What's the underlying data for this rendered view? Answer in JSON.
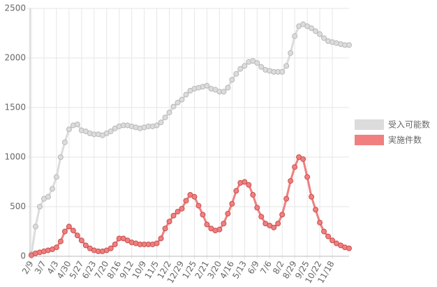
{
  "chart_data": {
    "type": "line",
    "categories": [
      "2/9",
      null,
      null,
      "3/7",
      null,
      null,
      "4/3",
      null,
      null,
      "4/30",
      null,
      null,
      "5/27",
      null,
      null,
      "6/23",
      null,
      null,
      "7/20",
      null,
      null,
      "8/16",
      null,
      null,
      "9/12",
      null,
      null,
      "10/9",
      null,
      null,
      "11/5",
      null,
      null,
      "12/2",
      null,
      null,
      "12/29",
      null,
      null,
      "1/25",
      null,
      null,
      "2/21",
      null,
      null,
      "3/20",
      null,
      null,
      "4/16",
      null,
      null,
      "5/13",
      null,
      null,
      "6/9",
      null,
      null,
      "7/6",
      null,
      null,
      "8/2",
      null,
      null,
      "8/29",
      null,
      null,
      "9/25",
      null,
      null,
      "10/22",
      null,
      null,
      "11/18",
      null,
      null,
      null,
      null
    ],
    "series": [
      {
        "name": "受入可能数",
        "color": "#dcdcdc",
        "values": [
          20,
          300,
          500,
          580,
          600,
          680,
          800,
          1000,
          1150,
          1280,
          1320,
          1330,
          1270,
          1260,
          1240,
          1230,
          1230,
          1220,
          1240,
          1260,
          1290,
          1310,
          1320,
          1320,
          1310,
          1300,
          1290,
          1300,
          1310,
          1310,
          1320,
          1350,
          1400,
          1450,
          1510,
          1550,
          1580,
          1630,
          1670,
          1690,
          1700,
          1710,
          1720,
          1690,
          1680,
          1660,
          1660,
          1700,
          1780,
          1840,
          1890,
          1920,
          1960,
          1970,
          1950,
          1910,
          1880,
          1870,
          1860,
          1860,
          1860,
          1920,
          2050,
          2220,
          2320,
          2340,
          2320,
          2300,
          2270,
          2240,
          2200,
          2170,
          2160,
          2150,
          2140,
          2130,
          2130
        ]
      },
      {
        "name": "実施件数",
        "color": "#f07f7f",
        "values": [
          10,
          30,
          40,
          50,
          60,
          70,
          90,
          150,
          250,
          300,
          260,
          210,
          160,
          110,
          80,
          60,
          50,
          50,
          60,
          80,
          120,
          180,
          180,
          160,
          140,
          130,
          120,
          120,
          120,
          120,
          130,
          180,
          280,
          350,
          410,
          450,
          480,
          560,
          620,
          600,
          510,
          420,
          320,
          280,
          260,
          270,
          330,
          430,
          530,
          660,
          740,
          750,
          720,
          620,
          490,
          400,
          330,
          310,
          290,
          330,
          420,
          580,
          760,
          900,
          1000,
          980,
          800,
          600,
          470,
          340,
          250,
          200,
          160,
          130,
          110,
          90,
          80
        ]
      }
    ],
    "ylim": [
      0,
      2500
    ],
    "yticks": [
      0,
      500,
      1000,
      1500,
      2000,
      2500
    ],
    "grid": true,
    "legend": "right"
  }
}
